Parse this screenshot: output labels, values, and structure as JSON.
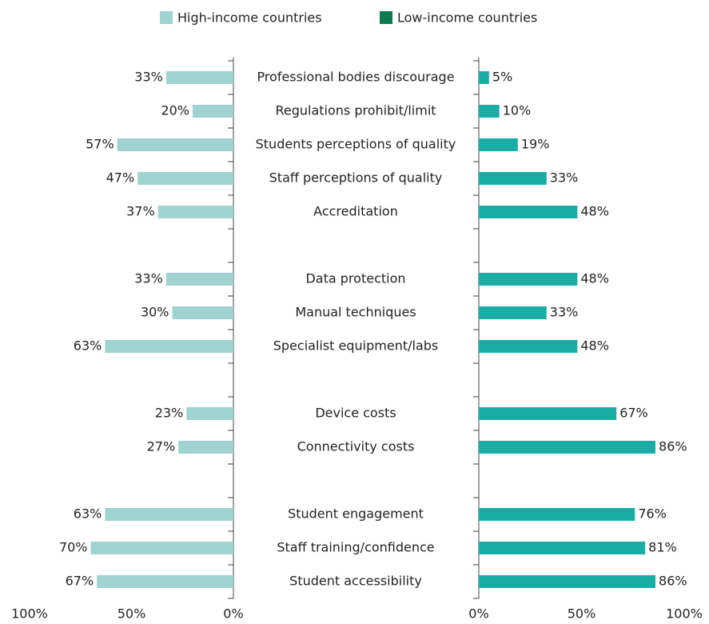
{
  "chart_data": {
    "type": "butterfly",
    "categories": [
      "Professional bodies discourage",
      "Regulations prohibit/limit",
      "Students perceptions of quality",
      "Staff perceptions of quality",
      "Accreditation",
      null,
      "Data protection",
      "Manual techniques",
      "Specialist equipment/labs",
      null,
      "Device costs",
      "Connectivity costs",
      null,
      "Student engagement",
      "Staff training/confidence",
      "Student accessibility"
    ],
    "series": [
      {
        "name": "High-income countries",
        "color": "#9fd3cf",
        "legend_color": "#9fd3cf",
        "side": "left",
        "values": [
          33,
          20,
          57,
          47,
          37,
          null,
          33,
          30,
          63,
          null,
          23,
          27,
          null,
          63,
          70,
          67
        ],
        "value_labels": [
          "33%",
          "20%",
          "57%",
          "47%",
          "37%",
          null,
          "33%",
          "30%",
          "63%",
          null,
          "23%",
          "27%",
          null,
          "63%",
          "70%",
          "67%"
        ]
      },
      {
        "name": "Low-income countries",
        "color": "#1aada5",
        "legend_color": "#0e7a4f",
        "side": "right",
        "values": [
          5,
          10,
          19,
          33,
          48,
          null,
          48,
          33,
          48,
          null,
          67,
          86,
          null,
          76,
          81,
          86
        ],
        "value_labels": [
          "5%",
          "10%",
          "19%",
          "33%",
          "48%",
          null,
          "48%",
          "33%",
          "48%",
          null,
          "67%",
          "86%",
          null,
          "76%",
          "81%",
          "86%"
        ]
      }
    ],
    "xlim": [
      0,
      100
    ],
    "xticks": [
      {
        "value": 0,
        "label": "0%"
      },
      {
        "value": 50,
        "label": "50%"
      },
      {
        "value": 100,
        "label": "100%"
      }
    ]
  }
}
